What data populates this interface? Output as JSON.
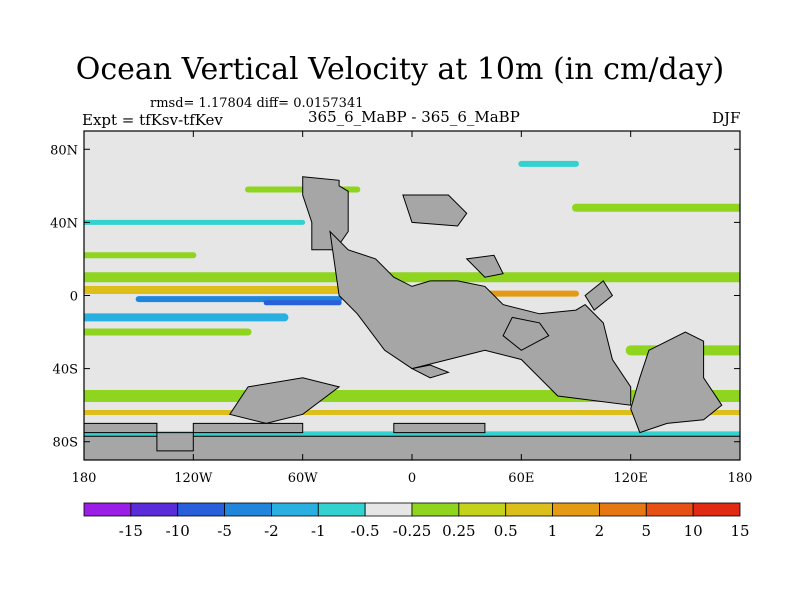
{
  "title": "Ocean Vertical Velocity at 10m (in cm/day)",
  "stats": "rmsd= 1.17804 diff= 0.0157341",
  "experiment": "Expt = tfKsv-tfKev",
  "cases": "365_6_MaBP - 365_6_MaBP",
  "season": "DJF",
  "map": {
    "projection": "cylindrical equidistant",
    "lon_range": [
      -180,
      180
    ],
    "lat_range": [
      -90,
      90
    ],
    "land_color": "#a6a6a6",
    "x_ticks": [
      {
        "lon": -180,
        "label": "180"
      },
      {
        "lon": -120,
        "label": "120W"
      },
      {
        "lon": -60,
        "label": "60W"
      },
      {
        "lon": 0,
        "label": "0"
      },
      {
        "lon": 60,
        "label": "60E"
      },
      {
        "lon": 120,
        "label": "120E"
      },
      {
        "lon": 180,
        "label": "180"
      }
    ],
    "y_ticks": [
      {
        "lat": 80,
        "label": "80N"
      },
      {
        "lat": 40,
        "label": "40N"
      },
      {
        "lat": 0,
        "label": "0"
      },
      {
        "lat": -40,
        "label": "40S"
      },
      {
        "lat": -80,
        "label": "80S"
      }
    ]
  },
  "colorbar": {
    "colors": [
      "#9b1ee6",
      "#5a2bd8",
      "#2a5fdc",
      "#1f86dc",
      "#29b0e0",
      "#34d2cf",
      "#e6e6e6",
      "#8fd41e",
      "#c3d21a",
      "#dcbf1a",
      "#e49a14",
      "#e67814",
      "#e65014",
      "#e02a14"
    ],
    "labels": [
      "-15",
      "-10",
      "-5",
      "-2",
      "-1",
      "-0.5",
      "-0.25",
      "0.25",
      "0.5",
      "1",
      "2",
      "5",
      "10",
      "15"
    ]
  },
  "field_bands": [
    {
      "lat": 58,
      "lon_start": -90,
      "lon_end": -30,
      "thickness": 6,
      "color": "#8fd41e"
    },
    {
      "lat": 72,
      "lon_start": 60,
      "lon_end": 90,
      "thickness": 6,
      "color": "#34d2cf"
    },
    {
      "lat": 48,
      "lon_start": 90,
      "lon_end": 180,
      "thickness": 8,
      "color": "#8fd41e"
    },
    {
      "lat": 40,
      "lon_start": -180,
      "lon_end": -60,
      "thickness": 5,
      "color": "#34d2cf"
    },
    {
      "lat": 22,
      "lon_start": -180,
      "lon_end": -120,
      "thickness": 6,
      "color": "#8fd41e"
    },
    {
      "lat": 10,
      "lon_start": -180,
      "lon_end": 180,
      "thickness": 10,
      "color": "#8fd41e"
    },
    {
      "lat": 3,
      "lon_start": -180,
      "lon_end": -30,
      "thickness": 8,
      "color": "#dcbf1a"
    },
    {
      "lat": 1,
      "lon_start": 30,
      "lon_end": 90,
      "thickness": 6,
      "color": "#e49a14"
    },
    {
      "lat": -2,
      "lon_start": -150,
      "lon_end": -40,
      "thickness": 6,
      "color": "#1f86dc"
    },
    {
      "lat": -4,
      "lon_start": -80,
      "lon_end": -40,
      "thickness": 5,
      "color": "#2a5fdc"
    },
    {
      "lat": -12,
      "lon_start": -180,
      "lon_end": -70,
      "thickness": 8,
      "color": "#29b0e0"
    },
    {
      "lat": -20,
      "lon_start": -180,
      "lon_end": -90,
      "thickness": 7,
      "color": "#8fd41e"
    },
    {
      "lat": -30,
      "lon_start": 120,
      "lon_end": 180,
      "thickness": 10,
      "color": "#8fd41e"
    },
    {
      "lat": -55,
      "lon_start": -180,
      "lon_end": 180,
      "thickness": 12,
      "color": "#8fd41e"
    },
    {
      "lat": -64,
      "lon_start": -180,
      "lon_end": 180,
      "thickness": 5,
      "color": "#dcbf1a"
    },
    {
      "lat": -76,
      "lon_start": -180,
      "lon_end": 180,
      "thickness": 6,
      "color": "#34d2cf"
    }
  ],
  "land_polygons": [
    [
      [
        -60,
        65
      ],
      [
        -40,
        63
      ],
      [
        -40,
        60
      ],
      [
        -35,
        57
      ],
      [
        -35,
        35
      ],
      [
        -42,
        25
      ],
      [
        -55,
        25
      ],
      [
        -55,
        40
      ],
      [
        -60,
        55
      ]
    ],
    [
      [
        -180,
        -70
      ],
      [
        -140,
        -70
      ],
      [
        -140,
        -75
      ],
      [
        -180,
        -75
      ]
    ],
    [
      [
        -120,
        -70
      ],
      [
        -60,
        -70
      ],
      [
        -60,
        -75
      ],
      [
        -120,
        -75
      ]
    ],
    [
      [
        -10,
        -70
      ],
      [
        40,
        -70
      ],
      [
        40,
        -75
      ],
      [
        -10,
        -75
      ]
    ],
    [
      [
        -180,
        -77
      ],
      [
        180,
        -77
      ],
      [
        180,
        -90
      ],
      [
        -180,
        -90
      ]
    ],
    [
      [
        -90,
        -50
      ],
      [
        -60,
        -45
      ],
      [
        -40,
        -50
      ],
      [
        -60,
        -65
      ],
      [
        -80,
        -70
      ],
      [
        -100,
        -65
      ]
    ],
    [
      [
        -45,
        35
      ],
      [
        -40,
        0
      ],
      [
        -30,
        -10
      ],
      [
        -15,
        -30
      ],
      [
        0,
        -40
      ],
      [
        20,
        -35
      ],
      [
        40,
        -30
      ],
      [
        60,
        -35
      ],
      [
        80,
        -55
      ],
      [
        120,
        -60
      ],
      [
        120,
        -50
      ],
      [
        110,
        -35
      ],
      [
        105,
        -15
      ],
      [
        95,
        -5
      ],
      [
        90,
        -8
      ],
      [
        70,
        -10
      ],
      [
        50,
        -5
      ],
      [
        40,
        5
      ],
      [
        25,
        8
      ],
      [
        10,
        8
      ],
      [
        0,
        5
      ],
      [
        -10,
        10
      ],
      [
        -20,
        20
      ],
      [
        -35,
        25
      ]
    ],
    [
      [
        -140,
        -75
      ],
      [
        -120,
        -75
      ],
      [
        -120,
        -85
      ],
      [
        -140,
        -85
      ]
    ],
    [
      [
        130,
        -30
      ],
      [
        150,
        -20
      ],
      [
        160,
        -25
      ],
      [
        160,
        -45
      ],
      [
        170,
        -60
      ],
      [
        160,
        -68
      ],
      [
        140,
        -70
      ],
      [
        125,
        -75
      ],
      [
        120,
        -62
      ],
      [
        125,
        -45
      ]
    ],
    [
      [
        -5,
        55
      ],
      [
        20,
        55
      ],
      [
        30,
        45
      ],
      [
        25,
        38
      ],
      [
        0,
        40
      ]
    ],
    [
      [
        30,
        20
      ],
      [
        45,
        22
      ],
      [
        50,
        12
      ],
      [
        40,
        10
      ]
    ],
    [
      [
        55,
        -12
      ],
      [
        70,
        -15
      ],
      [
        75,
        -22
      ],
      [
        60,
        -30
      ],
      [
        50,
        -22
      ]
    ],
    [
      [
        95,
        0
      ],
      [
        105,
        8
      ],
      [
        110,
        0
      ],
      [
        100,
        -8
      ]
    ],
    [
      [
        0,
        -40
      ],
      [
        10,
        -45
      ],
      [
        20,
        -42
      ],
      [
        10,
        -38
      ]
    ]
  ]
}
